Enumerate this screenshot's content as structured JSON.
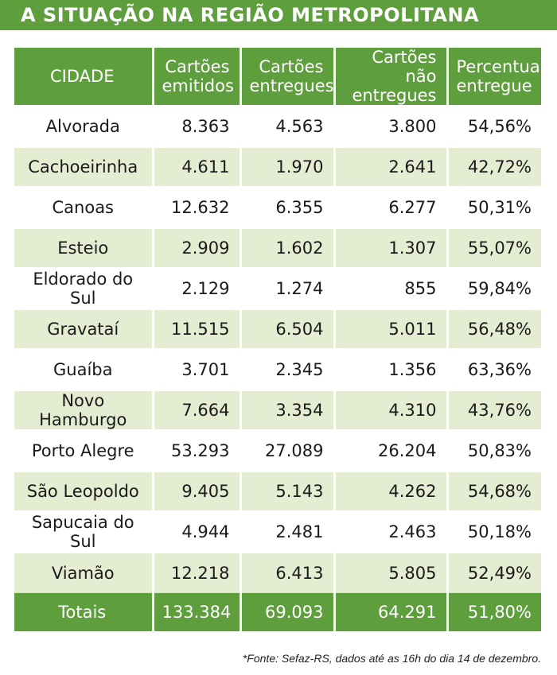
{
  "title": "A SITUAÇÃO NA REGIÃO METROPOLITANA",
  "table": {
    "headers": {
      "city": "CIDADE",
      "issued": [
        "Cartões",
        "emitidos"
      ],
      "delivered": [
        "Cartões",
        "entregues"
      ],
      "not_delivered": [
        "Cartões não",
        "entregues"
      ],
      "percent": [
        "Percentual",
        "entregue"
      ]
    },
    "rows": [
      {
        "city": "Alvorada",
        "issued": "8.363",
        "delivered": "4.563",
        "not_delivered": "3.800",
        "percent": "54,56%"
      },
      {
        "city": "Cachoeirinha",
        "issued": "4.611",
        "delivered": "1.970",
        "not_delivered": "2.641",
        "percent": "42,72%"
      },
      {
        "city": "Canoas",
        "issued": "12.632",
        "delivered": "6.355",
        "not_delivered": "6.277",
        "percent": "50,31%"
      },
      {
        "city": "Esteio",
        "issued": "2.909",
        "delivered": "1.602",
        "not_delivered": "1.307",
        "percent": "55,07%"
      },
      {
        "city": "Eldorado do Sul",
        "issued": "2.129",
        "delivered": "1.274",
        "not_delivered": "855",
        "percent": "59,84%"
      },
      {
        "city": "Gravataí",
        "issued": "11.515",
        "delivered": "6.504",
        "not_delivered": "5.011",
        "percent": "56,48%"
      },
      {
        "city": "Guaíba",
        "issued": "3.701",
        "delivered": "2.345",
        "not_delivered": "1.356",
        "percent": "63,36%"
      },
      {
        "city": "Novo Hamburgo",
        "issued": "7.664",
        "delivered": "3.354",
        "not_delivered": "4.310",
        "percent": "43,76%"
      },
      {
        "city": "Porto Alegre",
        "issued": "53.293",
        "delivered": "27.089",
        "not_delivered": "26.204",
        "percent": "50,83%"
      },
      {
        "city": "São Leopoldo",
        "issued": "9.405",
        "delivered": "5.143",
        "not_delivered": "4.262",
        "percent": "54,68%"
      },
      {
        "city": "Sapucaia do Sul",
        "issued": "4.944",
        "delivered": "2.481",
        "not_delivered": "2.463",
        "percent": "50,18%"
      },
      {
        "city": "Viamão",
        "issued": "12.218",
        "delivered": "6.413",
        "not_delivered": "5.805",
        "percent": "52,49%"
      }
    ],
    "totals": {
      "city": "Totais",
      "issued": "133.384",
      "delivered": "69.093",
      "not_delivered": "64.291",
      "percent": "51,80%"
    }
  },
  "source": "*Fonte: Sefaz-RS, dados até as 16h do dia 14 de dezembro.",
  "colors": {
    "accent_green": "#5f9e3c",
    "row_tint": "#e4edd2"
  }
}
